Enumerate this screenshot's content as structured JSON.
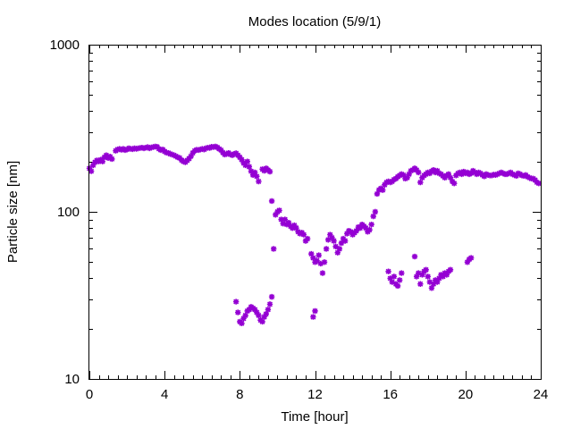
{
  "chart_data": {
    "type": "scatter",
    "title": "Modes location (5/9/1)",
    "xlabel": "Time [hour]",
    "ylabel": "Particle size [nm]",
    "xlim": [
      0,
      24
    ],
    "ylim": [
      10,
      1000
    ],
    "yscale": "log",
    "grid": false,
    "legend": "none",
    "marker_color": "#9400d3",
    "x_ticks": [
      0,
      4,
      8,
      12,
      16,
      20,
      24
    ],
    "x_tick_labels": [
      "0",
      "4",
      "8",
      "12",
      "16",
      "20",
      "24"
    ],
    "y_ticks": [
      10,
      100,
      1000
    ],
    "y_tick_labels": [
      "10",
      "100",
      "1000"
    ],
    "series": [
      {
        "points": [
          [
            0.0,
            182
          ],
          [
            0.1,
            175
          ],
          [
            0.2,
            190
          ],
          [
            0.3,
            198
          ],
          [
            0.4,
            203
          ],
          [
            0.5,
            200
          ],
          [
            0.6,
            205
          ],
          [
            0.7,
            200
          ],
          [
            0.8,
            212
          ],
          [
            0.9,
            218
          ],
          [
            1.0,
            210
          ],
          [
            1.1,
            214
          ],
          [
            1.2,
            207
          ],
          [
            1.4,
            232
          ],
          [
            1.5,
            236
          ],
          [
            1.6,
            238
          ],
          [
            1.7,
            235
          ],
          [
            1.8,
            238
          ],
          [
            1.9,
            234
          ],
          [
            2.0,
            236
          ],
          [
            2.1,
            240
          ],
          [
            2.2,
            238
          ],
          [
            2.3,
            237
          ],
          [
            2.4,
            240
          ],
          [
            2.5,
            238
          ],
          [
            2.6,
            240
          ],
          [
            2.7,
            241
          ],
          [
            2.8,
            242
          ],
          [
            2.9,
            240
          ],
          [
            3.0,
            242
          ],
          [
            3.1,
            244
          ],
          [
            3.2,
            240
          ],
          [
            3.3,
            243
          ],
          [
            3.4,
            244
          ],
          [
            3.5,
            246
          ],
          [
            3.6,
            245
          ],
          [
            3.7,
            238
          ],
          [
            3.8,
            234
          ],
          [
            3.9,
            236
          ],
          [
            4.0,
            230
          ],
          [
            4.1,
            226
          ],
          [
            4.2,
            225
          ],
          [
            4.3,
            222
          ],
          [
            4.4,
            220
          ],
          [
            4.5,
            218
          ],
          [
            4.6,
            215
          ],
          [
            4.7,
            212
          ],
          [
            4.8,
            210
          ],
          [
            4.9,
            204
          ],
          [
            5.0,
            200
          ],
          [
            5.1,
            198
          ],
          [
            5.2,
            203
          ],
          [
            5.3,
            208
          ],
          [
            5.4,
            215
          ],
          [
            5.5,
            225
          ],
          [
            5.6,
            232
          ],
          [
            5.7,
            235
          ],
          [
            5.8,
            234
          ],
          [
            5.9,
            236
          ],
          [
            6.0,
            238
          ],
          [
            6.1,
            236
          ],
          [
            6.2,
            240
          ],
          [
            6.3,
            242
          ],
          [
            6.4,
            241
          ],
          [
            6.5,
            245
          ],
          [
            6.6,
            244
          ],
          [
            6.7,
            246
          ],
          [
            6.8,
            243
          ],
          [
            6.9,
            238
          ],
          [
            7.0,
            234
          ],
          [
            7.1,
            226
          ],
          [
            7.2,
            220
          ],
          [
            7.3,
            222
          ],
          [
            7.4,
            225
          ],
          [
            7.5,
            220
          ],
          [
            7.6,
            218
          ],
          [
            7.7,
            222
          ],
          [
            7.8,
            224
          ],
          [
            7.9,
            218
          ],
          [
            8.0,
            212
          ],
          [
            8.1,
            205
          ],
          [
            8.2,
            196
          ],
          [
            8.3,
            190
          ],
          [
            8.4,
            200
          ],
          [
            8.5,
            186
          ],
          [
            8.6,
            175
          ],
          [
            8.7,
            166
          ],
          [
            8.8,
            172
          ],
          [
            8.9,
            163
          ],
          [
            9.0,
            152
          ],
          [
            9.2,
            180
          ],
          [
            9.3,
            176
          ],
          [
            9.4,
            182
          ],
          [
            9.5,
            178
          ],
          [
            9.6,
            174
          ],
          [
            9.7,
            116
          ],
          [
            9.8,
            60
          ],
          [
            9.9,
            96
          ],
          [
            10.0,
            100
          ],
          [
            10.1,
            102
          ],
          [
            10.2,
            90
          ],
          [
            10.3,
            85
          ],
          [
            10.4,
            90
          ],
          [
            10.5,
            84
          ],
          [
            10.6,
            86
          ],
          [
            10.7,
            82
          ],
          [
            10.8,
            80
          ],
          [
            10.9,
            83
          ],
          [
            11.0,
            80
          ],
          [
            11.1,
            76
          ],
          [
            11.2,
            74
          ],
          [
            11.3,
            75
          ],
          [
            11.4,
            73
          ],
          [
            11.5,
            67
          ],
          [
            11.6,
            69
          ],
          [
            11.8,
            56
          ],
          [
            11.9,
            53
          ],
          [
            12.0,
            50
          ],
          [
            12.1,
            51
          ],
          [
            12.2,
            55
          ],
          [
            12.3,
            49
          ],
          [
            12.4,
            43
          ],
          [
            12.5,
            50
          ],
          [
            12.6,
            60
          ],
          [
            12.7,
            68
          ],
          [
            12.8,
            73
          ],
          [
            12.9,
            70
          ],
          [
            13.0,
            67
          ],
          [
            13.1,
            62
          ],
          [
            13.2,
            57
          ],
          [
            13.3,
            60
          ],
          [
            13.4,
            65
          ],
          [
            13.5,
            69
          ],
          [
            13.6,
            67
          ],
          [
            13.7,
            74
          ],
          [
            13.8,
            77
          ],
          [
            13.9,
            76
          ],
          [
            14.0,
            73
          ],
          [
            14.1,
            75
          ],
          [
            14.2,
            77
          ],
          [
            14.3,
            81
          ],
          [
            14.4,
            80
          ],
          [
            14.5,
            84
          ],
          [
            14.6,
            82
          ],
          [
            14.7,
            80
          ],
          [
            14.8,
            76
          ],
          [
            14.9,
            78
          ],
          [
            15.0,
            84
          ],
          [
            15.1,
            94
          ],
          [
            15.2,
            100
          ],
          [
            15.3,
            128
          ],
          [
            15.4,
            135
          ],
          [
            15.5,
            138
          ],
          [
            15.6,
            135
          ],
          [
            15.7,
            145
          ],
          [
            15.8,
            150
          ],
          [
            15.9,
            152
          ],
          [
            16.0,
            150
          ],
          [
            16.1,
            152
          ],
          [
            16.2,
            156
          ],
          [
            16.3,
            158
          ],
          [
            16.4,
            162
          ],
          [
            16.5,
            165
          ],
          [
            16.6,
            168
          ],
          [
            16.7,
            166
          ],
          [
            16.8,
            158
          ],
          [
            16.9,
            160
          ],
          [
            17.0,
            168
          ],
          [
            17.1,
            176
          ],
          [
            17.2,
            178
          ],
          [
            17.3,
            182
          ],
          [
            17.4,
            178
          ],
          [
            17.5,
            172
          ],
          [
            17.6,
            150
          ],
          [
            17.7,
            160
          ],
          [
            17.8,
            165
          ],
          [
            17.9,
            168
          ],
          [
            18.0,
            172
          ],
          [
            18.1,
            170
          ],
          [
            18.2,
            175
          ],
          [
            18.3,
            178
          ],
          [
            18.4,
            172
          ],
          [
            18.5,
            176
          ],
          [
            18.6,
            170
          ],
          [
            18.7,
            168
          ],
          [
            18.8,
            164
          ],
          [
            18.9,
            160
          ],
          [
            19.0,
            165
          ],
          [
            19.1,
            168
          ],
          [
            19.2,
            160
          ],
          [
            19.3,
            152
          ],
          [
            19.4,
            148
          ],
          [
            19.5,
            165
          ],
          [
            19.6,
            170
          ],
          [
            19.7,
            172
          ],
          [
            19.8,
            168
          ],
          [
            19.9,
            174
          ],
          [
            20.0,
            170
          ],
          [
            20.1,
            172
          ],
          [
            20.2,
            168
          ],
          [
            20.3,
            170
          ],
          [
            20.4,
            176
          ],
          [
            20.5,
            172
          ],
          [
            20.6,
            168
          ],
          [
            20.7,
            172
          ],
          [
            20.8,
            170
          ],
          [
            20.9,
            166
          ],
          [
            21.0,
            163
          ],
          [
            21.1,
            168
          ],
          [
            21.2,
            166
          ],
          [
            21.3,
            165
          ],
          [
            21.4,
            165
          ],
          [
            21.5,
            167
          ],
          [
            21.6,
            166
          ],
          [
            21.7,
            168
          ],
          [
            21.8,
            170
          ],
          [
            21.9,
            172
          ],
          [
            22.0,
            170
          ],
          [
            22.1,
            168
          ],
          [
            22.2,
            168
          ],
          [
            22.3,
            170
          ],
          [
            22.4,
            172
          ],
          [
            22.5,
            168
          ],
          [
            22.6,
            166
          ],
          [
            22.7,
            164
          ],
          [
            22.8,
            170
          ],
          [
            22.9,
            168
          ],
          [
            23.0,
            165
          ],
          [
            23.1,
            164
          ],
          [
            23.2,
            166
          ],
          [
            23.3,
            162
          ],
          [
            23.4,
            160
          ],
          [
            23.5,
            158
          ],
          [
            23.6,
            158
          ],
          [
            23.7,
            155
          ],
          [
            23.8,
            150
          ],
          [
            23.9,
            148
          ],
          [
            7.8,
            29
          ],
          [
            7.9,
            25
          ],
          [
            8.0,
            22
          ],
          [
            8.1,
            21.5
          ],
          [
            8.2,
            23
          ],
          [
            8.3,
            24
          ],
          [
            8.4,
            25.5
          ],
          [
            8.5,
            26
          ],
          [
            8.6,
            27
          ],
          [
            8.7,
            26.5
          ],
          [
            8.8,
            26
          ],
          [
            8.9,
            25
          ],
          [
            9.0,
            24
          ],
          [
            9.1,
            22.5
          ],
          [
            9.2,
            22
          ],
          [
            9.3,
            23.5
          ],
          [
            9.4,
            24.5
          ],
          [
            9.5,
            26
          ],
          [
            9.6,
            28
          ],
          [
            9.7,
            31
          ],
          [
            11.9,
            23.5
          ],
          [
            12.0,
            25.5
          ],
          [
            15.9,
            44
          ],
          [
            16.0,
            40
          ],
          [
            16.1,
            38
          ],
          [
            16.2,
            41
          ],
          [
            16.3,
            37
          ],
          [
            16.4,
            36
          ],
          [
            16.5,
            39
          ],
          [
            16.6,
            43
          ],
          [
            17.3,
            54
          ],
          [
            17.4,
            41
          ],
          [
            17.5,
            43
          ],
          [
            17.6,
            37
          ],
          [
            17.7,
            42
          ],
          [
            17.8,
            44
          ],
          [
            17.9,
            45
          ],
          [
            18.0,
            41
          ],
          [
            18.1,
            38
          ],
          [
            18.2,
            35
          ],
          [
            18.3,
            37
          ],
          [
            18.4,
            39
          ],
          [
            18.5,
            38
          ],
          [
            18.6,
            40
          ],
          [
            18.7,
            42
          ],
          [
            18.8,
            41
          ],
          [
            18.9,
            43
          ],
          [
            19.0,
            42
          ],
          [
            19.1,
            44
          ],
          [
            19.2,
            45
          ],
          [
            20.1,
            50
          ],
          [
            20.2,
            52
          ],
          [
            20.3,
            53
          ]
        ]
      }
    ]
  }
}
